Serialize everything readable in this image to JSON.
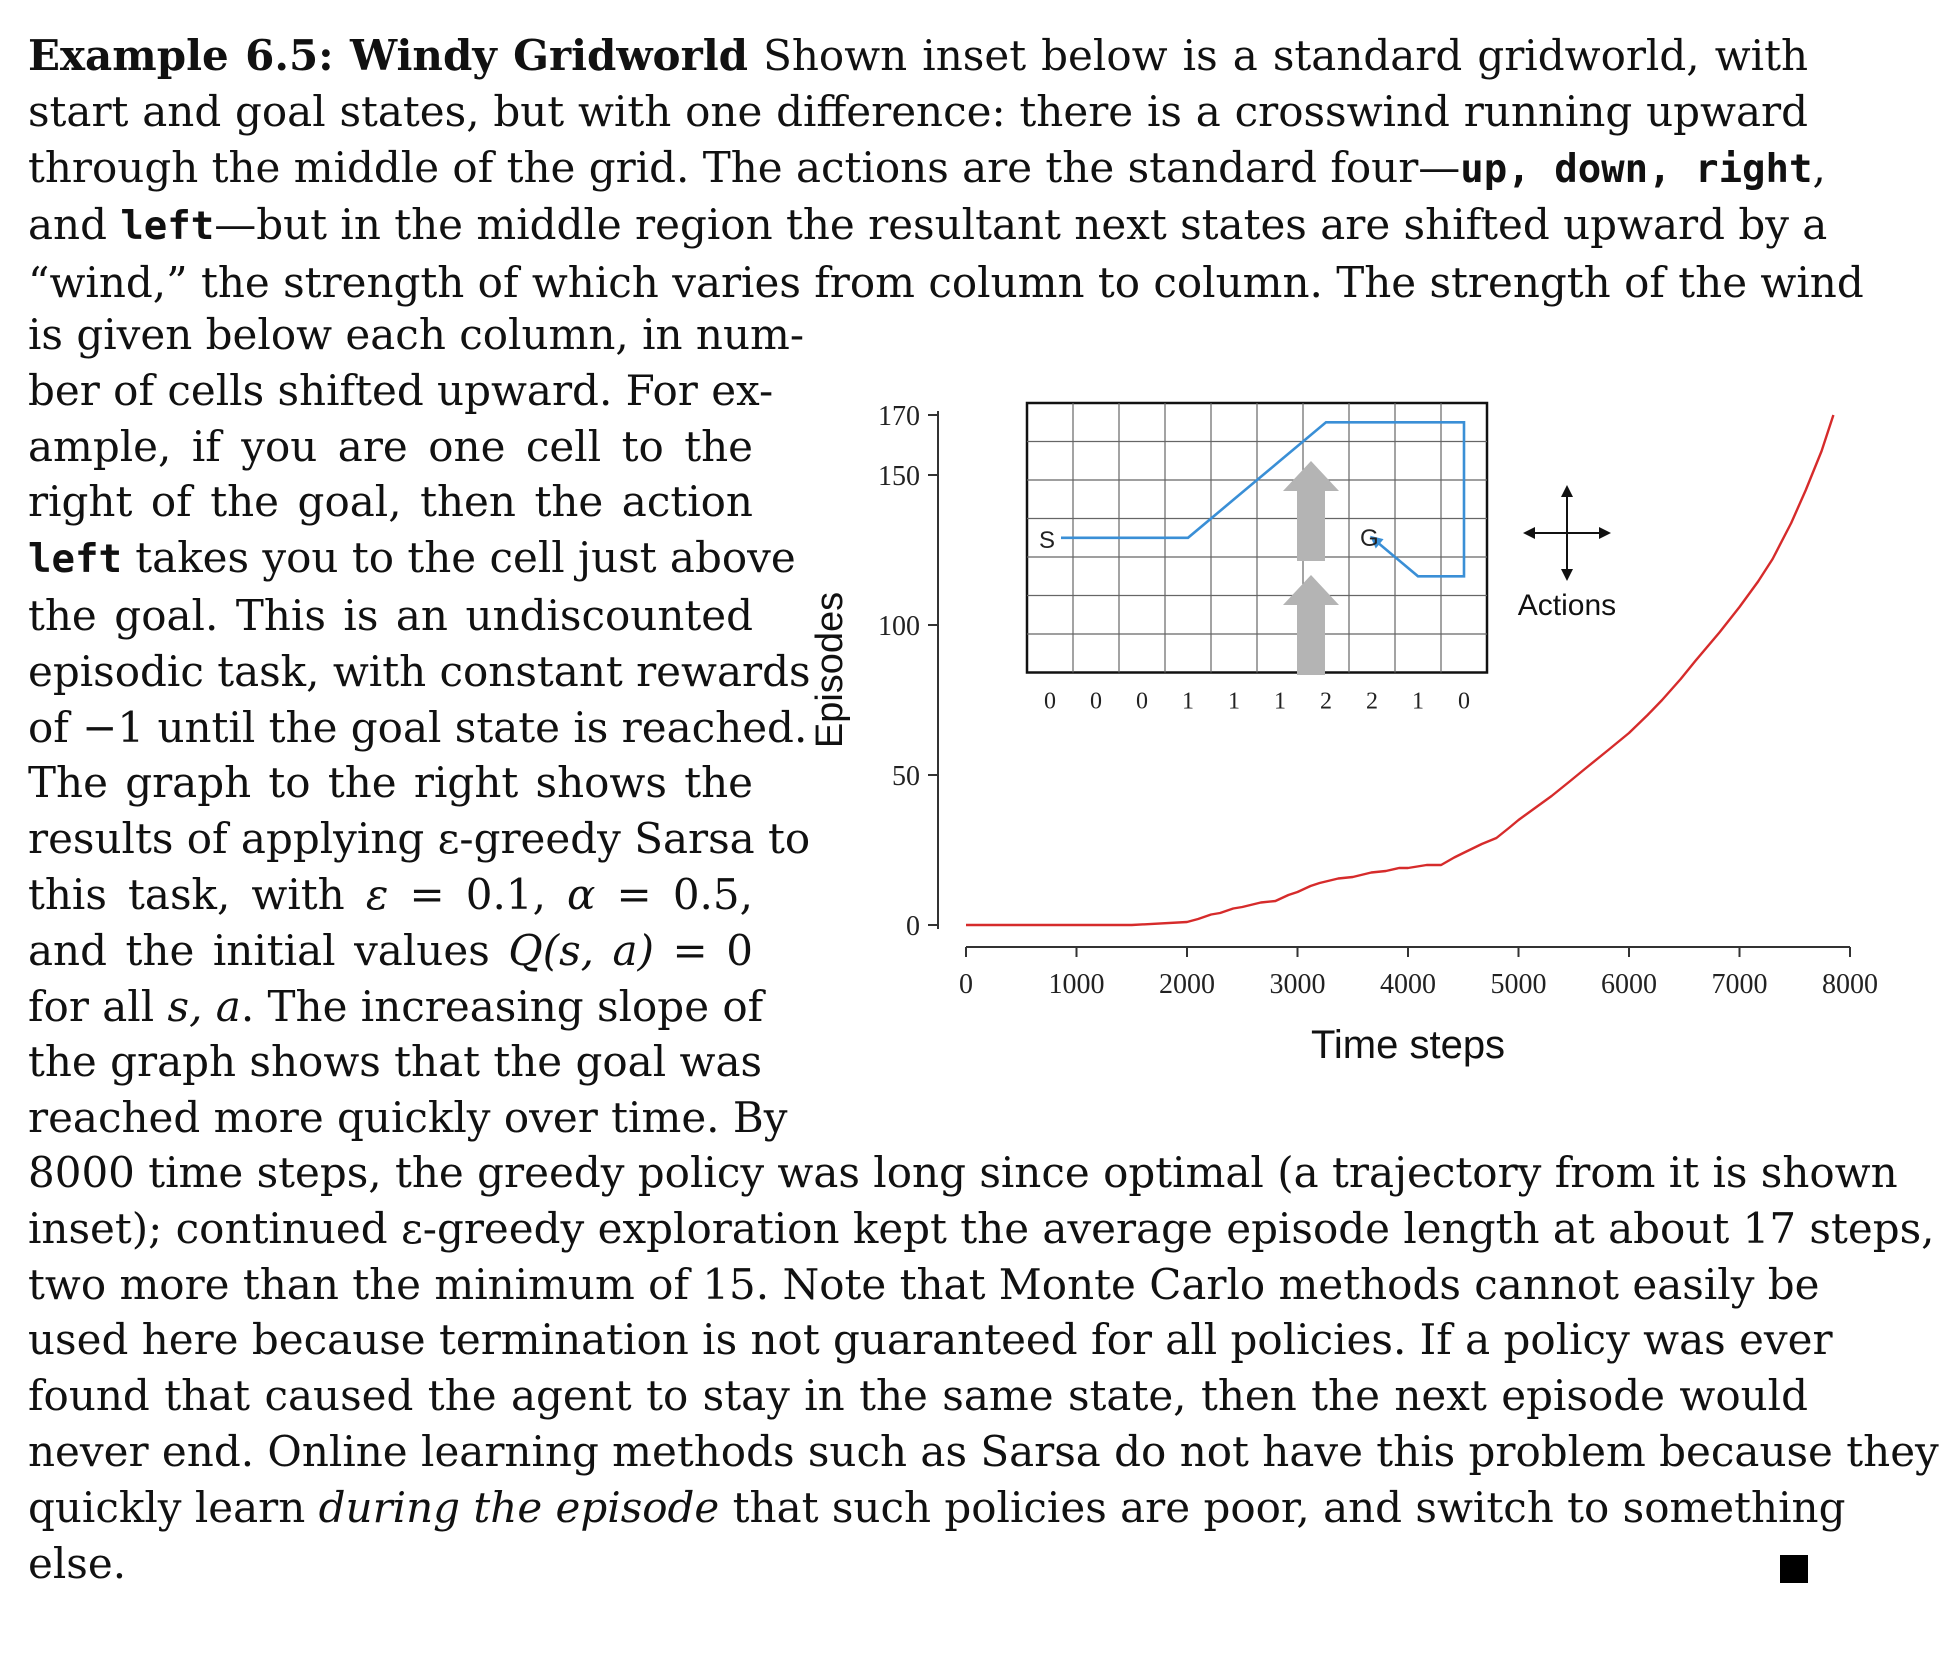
{
  "text": {
    "top_lines": [
      {
        "parts": [
          {
            "t": "Example 6.5: Windy Gridworld",
            "s": "bold"
          },
          {
            "t": "  Shown inset below is a standard gridworld, with"
          }
        ]
      },
      {
        "parts": [
          {
            "t": "start and goal states, but with one difference:  there is a crosswind running upward"
          }
        ]
      },
      {
        "parts": [
          {
            "t": "through the middle of the grid. The actions are the standard four—"
          },
          {
            "t": "up, down, right",
            "s": "mono"
          },
          {
            "t": ","
          }
        ]
      },
      {
        "parts": [
          {
            "t": "and "
          },
          {
            "t": "left",
            "s": "mono"
          },
          {
            "t": "—but in the middle region the resultant next states are shifted upward by a"
          }
        ]
      },
      {
        "parts": [
          {
            "t": "“wind,” the strength of which varies from column to column. The strength of the wind"
          }
        ]
      }
    ],
    "left_lines": [
      {
        "parts": [
          {
            "t": "is given below each column, in num-"
          }
        ]
      },
      {
        "parts": [
          {
            "t": "ber of cells shifted upward. For ex-"
          }
        ]
      },
      {
        "parts": [
          {
            "t": "ample, if you are one cell to the"
          }
        ]
      },
      {
        "parts": [
          {
            "t": "right of the goal, then the action"
          }
        ]
      },
      {
        "parts": [
          {
            "t": "left",
            "s": "mono"
          },
          {
            "t": " takes you to the cell just above"
          }
        ]
      },
      {
        "parts": [
          {
            "t": "the goal. This is an undiscounted"
          }
        ]
      },
      {
        "parts": [
          {
            "t": "episodic task, with constant rewards"
          }
        ]
      },
      {
        "parts": [
          {
            "t": "of −1 until the goal state is reached.",
            "last": true
          }
        ]
      },
      {
        "parts": [
          {
            "t": "    The graph to the right shows the"
          }
        ]
      },
      {
        "parts": [
          {
            "t": "results of applying ε-greedy Sarsa to"
          }
        ]
      },
      {
        "parts": [
          {
            "t": "this task, with "
          },
          {
            "t": "ε",
            "s": "ital"
          },
          {
            "t": " = 0.1, "
          },
          {
            "t": "α",
            "s": "ital"
          },
          {
            "t": " = 0.5,"
          }
        ]
      },
      {
        "parts": [
          {
            "t": "and the initial values "
          },
          {
            "t": "Q(s, a)",
            "s": "ital"
          },
          {
            "t": " = 0"
          }
        ]
      },
      {
        "parts": [
          {
            "t": "for all "
          },
          {
            "t": "s, a",
            "s": "ital"
          },
          {
            "t": ". The increasing slope of"
          }
        ]
      },
      {
        "parts": [
          {
            "t": "the graph shows that the goal was"
          }
        ]
      },
      {
        "parts": [
          {
            "t": "reached more quickly over time. By"
          }
        ]
      }
    ],
    "bottom_lines": [
      {
        "parts": [
          {
            "t": "8000 time steps, the greedy policy was long since optimal (a trajectory from it is shown"
          }
        ]
      },
      {
        "parts": [
          {
            "t": "inset); continued ε-greedy exploration kept the average episode length at about 17 steps,"
          }
        ]
      },
      {
        "parts": [
          {
            "t": "two more than the minimum of 15. Note that Monte Carlo methods cannot easily be"
          }
        ]
      },
      {
        "parts": [
          {
            "t": "used here because termination is not guaranteed for all policies. If a policy was ever"
          }
        ]
      },
      {
        "parts": [
          {
            "t": "found that caused the agent to stay in the same state, then the next episode would"
          }
        ]
      },
      {
        "parts": [
          {
            "t": "never end. Online learning methods such as Sarsa do not have this problem because they"
          }
        ]
      },
      {
        "parts": [
          {
            "t": "quickly learn "
          },
          {
            "t": "during the episode",
            "s": "ital"
          },
          {
            "t": " that such policies are poor, and switch to something"
          }
        ]
      },
      {
        "parts": [
          {
            "t": "else.",
            "last": true
          }
        ]
      }
    ]
  },
  "chart_data": {
    "type": "line",
    "xlabel": "Time steps",
    "ylabel": "Episodes",
    "xlim": [
      0,
      8000
    ],
    "x_ticks": [
      "0",
      "1000",
      "2000",
      "3000",
      "4000",
      "5000",
      "6000",
      "7000",
      "8000"
    ],
    "y_ticks": [
      "0",
      "50",
      "100",
      "150",
      "170"
    ],
    "y_tick_values": [
      0,
      50,
      100,
      150,
      170
    ],
    "ylim": [
      0,
      170
    ],
    "line_color": "#d62b2b",
    "series": [
      {
        "x": [
          0,
          1000,
          1500,
          2000,
          2100,
          2300,
          2500,
          2800,
          3000,
          3200,
          3500,
          3800,
          4000,
          4300,
          4500,
          4800,
          5000,
          5300,
          5600,
          6000,
          6300,
          6600,
          7000,
          7300,
          7600,
          7850
        ],
        "y": [
          0,
          0,
          0,
          1,
          2,
          4,
          6,
          8,
          11,
          14,
          16,
          18,
          19,
          20,
          24,
          29,
          35,
          43,
          52,
          64,
          75,
          88,
          106,
          122,
          145,
          170
        ]
      }
    ],
    "inset": {
      "start_label": "S",
      "goal_label": "G",
      "wind_labels": [
        "0",
        "0",
        "0",
        "1",
        "1",
        "1",
        "2",
        "2",
        "1",
        "0"
      ],
      "actions_label": "Actions",
      "trajectory_color": "#3a8fd6",
      "arrow_color": "#b4b4b4",
      "trajectory": [
        [
          0,
          3
        ],
        [
          3,
          3
        ],
        [
          4,
          2
        ],
        [
          5,
          1
        ],
        [
          6,
          0
        ],
        [
          9,
          0
        ],
        [
          9,
          4
        ],
        [
          8,
          4
        ],
        [
          7,
          3
        ]
      ]
    }
  }
}
